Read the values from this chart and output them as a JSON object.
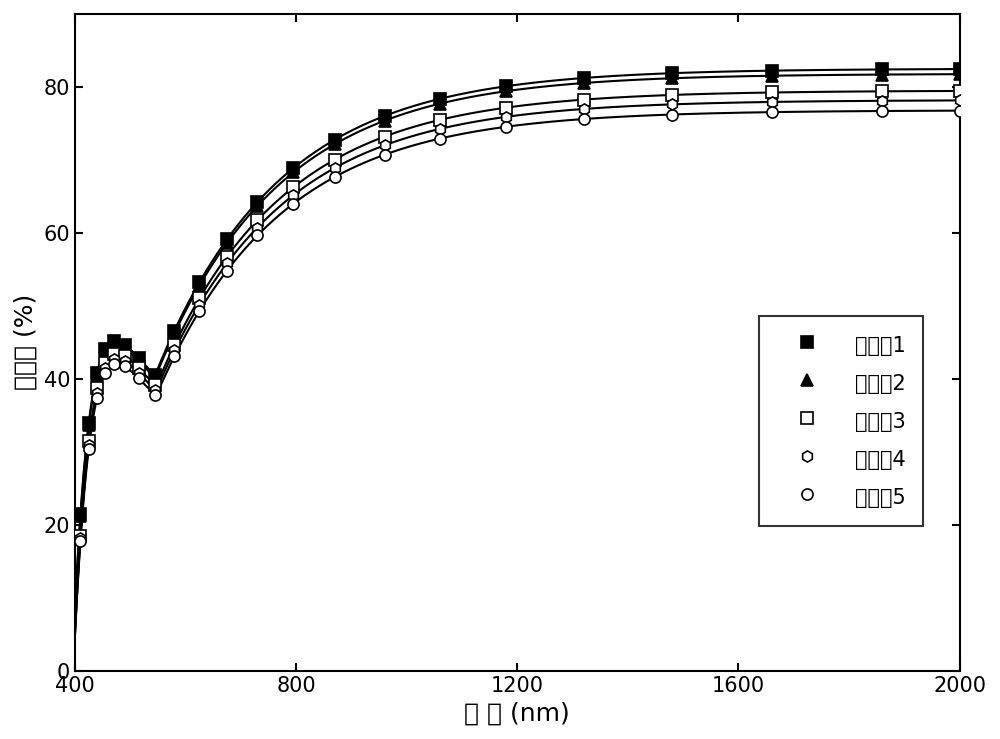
{
  "title": "",
  "xlabel": "波 长 (nm)",
  "ylabel": "透过率 (%)",
  "xlim": [
    400,
    2000
  ],
  "ylim": [
    0,
    90
  ],
  "xticks": [
    400,
    800,
    1200,
    1600,
    2000
  ],
  "yticks": [
    0,
    20,
    40,
    60,
    80
  ],
  "series": [
    {
      "label": "实施例1",
      "marker": "s",
      "fillstyle": "full",
      "color": "#000000",
      "final_val": 82.5,
      "k1": 0.022,
      "k2": 0.0045,
      "wl0": 395.0
    },
    {
      "label": "实施例2",
      "marker": "^",
      "fillstyle": "full",
      "color": "#000000",
      "final_val": 81.8,
      "k1": 0.022,
      "k2": 0.0045,
      "wl0": 395.0
    },
    {
      "label": "实施例3",
      "marker": "s",
      "fillstyle": "none",
      "color": "#000000",
      "final_val": 79.5,
      "k1": 0.022,
      "k2": 0.0045,
      "wl0": 397.0
    },
    {
      "label": "实施例4",
      "marker": "h",
      "fillstyle": "none",
      "color": "#000000",
      "final_val": 78.2,
      "k1": 0.022,
      "k2": 0.0045,
      "wl0": 397.0
    },
    {
      "label": "实施例5",
      "marker": "o",
      "fillstyle": "none",
      "color": "#000000",
      "final_val": 76.8,
      "k1": 0.022,
      "k2": 0.0045,
      "wl0": 397.0
    }
  ],
  "background_color": "#ffffff",
  "line_color": "#000000",
  "linewidth": 1.5,
  "markersize": 8,
  "legend_fontsize": 15,
  "axis_fontsize": 18,
  "tick_fontsize": 15
}
